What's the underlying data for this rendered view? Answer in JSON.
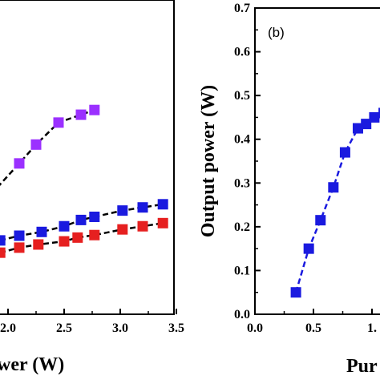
{
  "chart_data": [
    {
      "type": "scatter",
      "panel": "(a)",
      "xlabel": "wer (W)",
      "ylabel": "",
      "xticks": [
        "2.0",
        "2.5",
        "3.0",
        "3.5"
      ],
      "xlim": [
        1.5,
        3.5
      ],
      "ylim": [
        0,
        1
      ],
      "series": [
        {
          "color": "#9b30ff",
          "line": "dashed",
          "points": [
            [
              1.75,
              0.34
            ],
            [
              1.87,
              0.39
            ],
            [
              2.1,
              0.48
            ],
            [
              2.25,
              0.54
            ],
            [
              2.45,
              0.61
            ],
            [
              2.65,
              0.635
            ],
            [
              2.77,
              0.65
            ]
          ]
        },
        {
          "color": "#1a1adf",
          "line": "dashed",
          "points": [
            [
              1.93,
              0.235
            ],
            [
              2.1,
              0.25
            ],
            [
              2.3,
              0.262
            ],
            [
              2.5,
              0.28
            ],
            [
              2.65,
              0.3
            ],
            [
              2.77,
              0.31
            ],
            [
              3.02,
              0.33
            ],
            [
              3.2,
              0.34
            ],
            [
              3.38,
              0.35
            ]
          ]
        },
        {
          "color": "#e62020",
          "line": "dashed",
          "points": [
            [
              1.93,
              0.196
            ],
            [
              2.1,
              0.212
            ],
            [
              2.27,
              0.222
            ],
            [
              2.5,
              0.232
            ],
            [
              2.62,
              0.244
            ],
            [
              2.77,
              0.252
            ],
            [
              3.02,
              0.27
            ],
            [
              3.2,
              0.28
            ],
            [
              3.38,
              0.29
            ]
          ]
        }
      ]
    },
    {
      "type": "scatter",
      "panel": "(b)",
      "xlabel": "Pur",
      "ylabel": "Output power (W)",
      "xticks": [
        "0.0",
        "0.5",
        "1."
      ],
      "yticks": [
        "0.0",
        "0.1",
        "0.2",
        "0.3",
        "0.4",
        "0.5",
        "0.6",
        "0.7"
      ],
      "xlim": [
        0,
        1.5
      ],
      "ylim": [
        0,
        0.7
      ],
      "series": [
        {
          "color": "#1a1adf",
          "line": "dashed",
          "points": [
            [
              0.35,
              0.05
            ],
            [
              0.46,
              0.15
            ],
            [
              0.56,
              0.215
            ],
            [
              0.67,
              0.29
            ],
            [
              0.77,
              0.37
            ],
            [
              0.88,
              0.425
            ],
            [
              0.95,
              0.435
            ],
            [
              1.02,
              0.45
            ],
            [
              1.1,
              0.46
            ]
          ]
        }
      ]
    }
  ]
}
